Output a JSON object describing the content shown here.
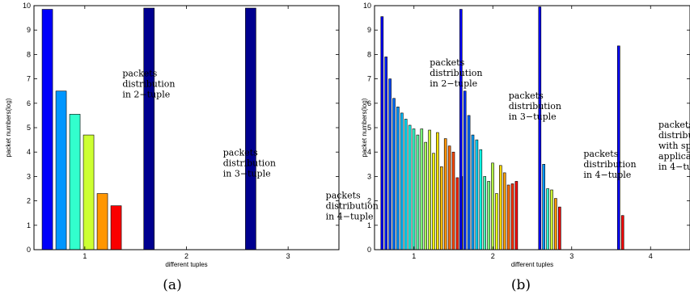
{
  "chart_data": [
    {
      "type": "bar",
      "panel_label": "(a)",
      "xlabel": "different tuples",
      "ylabel": "packet numbers(log)",
      "ylim": [
        0,
        10
      ],
      "xlim": [
        0.5,
        3.5
      ],
      "yticks": [
        0,
        1,
        2,
        3,
        4,
        5,
        6,
        7,
        8,
        9,
        10
      ],
      "xticks": [
        "1",
        "2",
        "3"
      ],
      "grid": false,
      "groups": [
        {
          "category": "1",
          "values": [
            9.85,
            6.5,
            5.55,
            4.7,
            2.3,
            1.8
          ]
        },
        {
          "category": "2",
          "values": [
            9.9
          ]
        },
        {
          "category": "3",
          "values": [
            9.9
          ]
        }
      ],
      "annotations": [
        {
          "lines": [
            "packets",
            "distribution",
            "in 2−tuple"
          ],
          "at": [
            1.37,
            7.1
          ]
        },
        {
          "lines": [
            "packets",
            "distribution",
            "in 3−tuple"
          ],
          "at": [
            2.36,
            3.85
          ]
        },
        {
          "lines": [
            "packets",
            "distribution",
            "in 4−tuple"
          ],
          "at": [
            3.37,
            2.1
          ]
        }
      ]
    },
    {
      "type": "bar",
      "panel_label": "(b)",
      "xlabel": "different tuples",
      "ylabel": "packet numbers(log)",
      "ylim": [
        0,
        10
      ],
      "xlim": [
        0.5,
        4.5
      ],
      "yticks": [
        0,
        1,
        2,
        3,
        4,
        5,
        6,
        7,
        8,
        9,
        10
      ],
      "xticks": [
        "1",
        "2",
        "3",
        "4"
      ],
      "grid": false,
      "groups": [
        {
          "category": "1",
          "values": [
            9.55,
            7.9,
            7.0,
            6.2,
            5.85,
            5.6,
            5.35,
            5.1,
            4.95,
            4.7,
            4.95,
            4.4,
            4.9,
            3.95,
            4.8,
            3.4,
            4.55,
            4.25,
            4.0,
            2.95,
            3.0
          ]
        },
        {
          "category": "2",
          "values": [
            9.85,
            6.5,
            5.5,
            4.7,
            4.5,
            4.1,
            3.0,
            2.8,
            3.55,
            2.3,
            3.45,
            3.15,
            2.65,
            2.7,
            2.8
          ]
        },
        {
          "category": "3",
          "values": [
            9.95,
            3.5,
            2.5,
            2.45,
            2.1,
            1.75
          ]
        },
        {
          "category": "4",
          "values": [
            8.35,
            1.4
          ]
        }
      ],
      "annotations": [
        {
          "lines": [
            "packets",
            "distribution",
            "in 2−tuple"
          ],
          "at": [
            1.2,
            7.55
          ]
        },
        {
          "lines": [
            "packets",
            "distribution",
            "in 3−tuple"
          ],
          "at": [
            2.2,
            6.2
          ]
        },
        {
          "lines": [
            "packets",
            "distribution",
            "in 4−tuple"
          ],
          "at": [
            3.15,
            3.8
          ]
        },
        {
          "lines": [
            "packets",
            "distribution",
            "with special",
            "application",
            "in 4−tuple"
          ],
          "at": [
            4.1,
            5.0
          ]
        }
      ]
    }
  ]
}
